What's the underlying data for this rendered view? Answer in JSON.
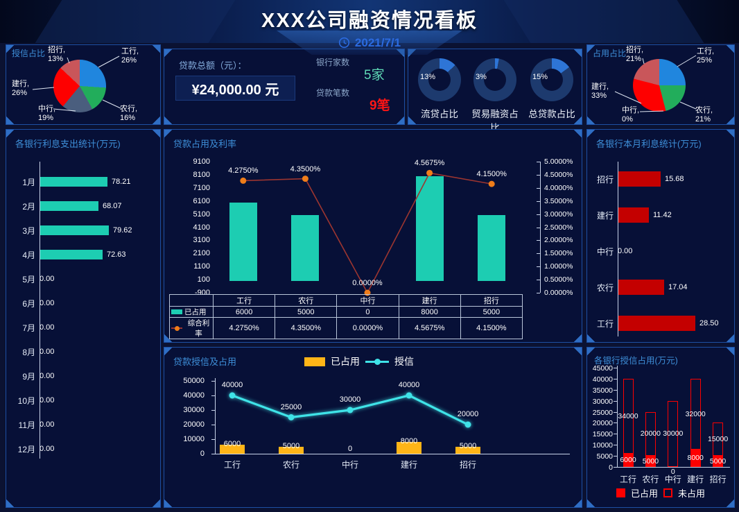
{
  "header": {
    "title": "XXX公司融资情况看板",
    "date": "2021/7/1"
  },
  "loan_summary": {
    "total_label": "贷款总额（元）：",
    "total_value": "¥24,000.00 元",
    "bank_count_label": "银行家数",
    "bank_count_value": "5家",
    "loan_count_label": "贷款笔数",
    "loan_count_value": "9笔"
  },
  "chart_data": [
    {
      "id": "credit-pie",
      "type": "pie",
      "title": "授信占比",
      "slices": [
        {
          "bank": "工行",
          "label": "工行,",
          "pct": "26%",
          "value": 26,
          "color": "#2086de"
        },
        {
          "bank": "农行",
          "label": "农行,",
          "pct": "16%",
          "value": 16,
          "color": "#22ad5b"
        },
        {
          "bank": "中行",
          "label": "中行,",
          "pct": "19%",
          "value": 19,
          "color": "#4a5e7e"
        },
        {
          "bank": "建行",
          "label": "建行,",
          "pct": "26%",
          "value": 26,
          "color": "#fe0000"
        },
        {
          "bank": "招行",
          "label": "招行,",
          "pct": "13%",
          "value": 13,
          "color": "#c9565a"
        }
      ]
    },
    {
      "id": "occupy-pie",
      "type": "pie",
      "title": "占用占比",
      "slices": [
        {
          "bank": "工行",
          "label": "工行,",
          "pct": "25%",
          "value": 25,
          "color": "#2086de"
        },
        {
          "bank": "农行",
          "label": "农行,",
          "pct": "21%",
          "value": 21,
          "color": "#22ad5b"
        },
        {
          "bank": "中行",
          "label": "中行,",
          "pct": "0%",
          "value": 0,
          "color": "#4a5e7e"
        },
        {
          "bank": "建行",
          "label": "建行,",
          "pct": "33%",
          "value": 33,
          "color": "#fe0000"
        },
        {
          "bank": "招行",
          "label": "招行,",
          "pct": "21%",
          "value": 21,
          "color": "#c9565a"
        }
      ]
    },
    {
      "id": "ratio-donuts",
      "type": "pie",
      "ring_color": "#1d3a6e",
      "highlight_color": "#2e75d6",
      "items": [
        {
          "label": "流贷占比",
          "pct": "13%",
          "value": 13
        },
        {
          "label": "贸易融资占比",
          "pct": "3%",
          "value": 3
        },
        {
          "label": "总贷款占比",
          "pct": "15%",
          "value": 15
        }
      ]
    },
    {
      "id": "interest-month",
      "type": "bar",
      "orientation": "horizontal",
      "title": "各银行利息支出统计(万元)",
      "color": "#1dcdb2",
      "categories": [
        "1月",
        "2月",
        "3月",
        "4月",
        "5月",
        "6月",
        "7月",
        "8月",
        "9月",
        "10月",
        "11月",
        "12月"
      ],
      "values": [
        78.21,
        68.07,
        79.62,
        72.63,
        0,
        0,
        0,
        0,
        0,
        0,
        0,
        0
      ],
      "value_labels": [
        "78.21",
        "68.07",
        "79.62",
        "72.63",
        "0.00",
        "0.00",
        "0.00",
        "0.00",
        "0.00",
        "0.00",
        "0.00",
        "0.00"
      ]
    },
    {
      "id": "loan-rate",
      "type": "bar+line",
      "title": "贷款占用及利率",
      "categories": [
        "工行",
        "农行",
        "中行",
        "建行",
        "招行"
      ],
      "series": [
        {
          "name": "已占用",
          "type": "bar",
          "color": "#1dcdb2",
          "values": [
            6000,
            5000,
            0,
            8000,
            5000
          ],
          "value_labels": [
            "6000",
            "5000",
            "0",
            "8000",
            "5000"
          ]
        },
        {
          "name": "综合利率",
          "type": "line",
          "color": "#9c3530",
          "marker_color": "#ef7d1a",
          "values": [
            4.275,
            4.35,
            0,
            4.5675,
            4.15
          ],
          "value_labels": [
            "4.2750%",
            "4.3500%",
            "0.0000%",
            "4.5675%",
            "4.1500%"
          ]
        }
      ],
      "left_axis": {
        "min": -900,
        "max": 9100,
        "ticks": [
          "9100",
          "8100",
          "7100",
          "6100",
          "5100",
          "4100",
          "3100",
          "2100",
          "1100",
          "100",
          "-900"
        ]
      },
      "right_axis": {
        "min": 0,
        "max": 5,
        "ticks": [
          "5.0000%",
          "4.5000%",
          "4.0000%",
          "3.5000%",
          "3.0000%",
          "2.5000%",
          "2.0000%",
          "1.5000%",
          "1.0000%",
          "0.5000%",
          "0.0000%"
        ]
      }
    },
    {
      "id": "credit-occupy",
      "type": "bar+line",
      "title": "贷款授信及占用",
      "categories": [
        "工行",
        "农行",
        "中行",
        "建行",
        "招行"
      ],
      "series": [
        {
          "name": "已占用",
          "type": "bar",
          "color": "#ffb517",
          "values": [
            6000,
            5000,
            0,
            8000,
            5000
          ],
          "value_labels": [
            "6000",
            "5000",
            "0",
            "8000",
            "5000"
          ]
        },
        {
          "name": "授信",
          "type": "line",
          "color": "#3fe3e8",
          "values": [
            40000,
            25000,
            30000,
            40000,
            20000
          ],
          "value_labels": [
            "40000",
            "25000",
            "30000",
            "40000",
            "20000"
          ]
        }
      ],
      "y_axis": {
        "min": 0,
        "max": 50000,
        "ticks": [
          "50000",
          "40000",
          "30000",
          "20000",
          "10000",
          "0"
        ]
      }
    },
    {
      "id": "bank-interest",
      "type": "bar",
      "orientation": "horizontal",
      "title": "各银行本月利息统计(万元)",
      "color": "#c40000",
      "categories": [
        "招行",
        "建行",
        "中行",
        "农行",
        "工行"
      ],
      "values": [
        15.68,
        11.42,
        0,
        17.04,
        28.5
      ],
      "value_labels": [
        "15.68",
        "11.42",
        "0.00",
        "17.04",
        "28.50"
      ]
    },
    {
      "id": "bank-credit",
      "type": "stacked-bar",
      "title": "各银行授信占用(万元)",
      "categories": [
        "工行",
        "农行",
        "中行",
        "建行",
        "招行"
      ],
      "series": [
        {
          "name": "已占用",
          "style": "solid",
          "color": "#fe0000",
          "values": [
            6000,
            5000,
            0,
            8000,
            5000
          ],
          "value_labels": [
            "6000",
            "5000",
            "0",
            "8000",
            "5000"
          ]
        },
        {
          "name": "未占用",
          "style": "outline",
          "color": "#fe0000",
          "values": [
            34000,
            20000,
            30000,
            32000,
            15000
          ],
          "value_labels": [
            "34000",
            "20000",
            "30000",
            "32000",
            "15000"
          ]
        }
      ],
      "y_axis": {
        "min": 0,
        "max": 45000,
        "ticks": [
          "45000",
          "40000",
          "35000",
          "30000",
          "25000",
          "20000",
          "15000",
          "10000",
          "5000",
          "0"
        ]
      }
    }
  ]
}
